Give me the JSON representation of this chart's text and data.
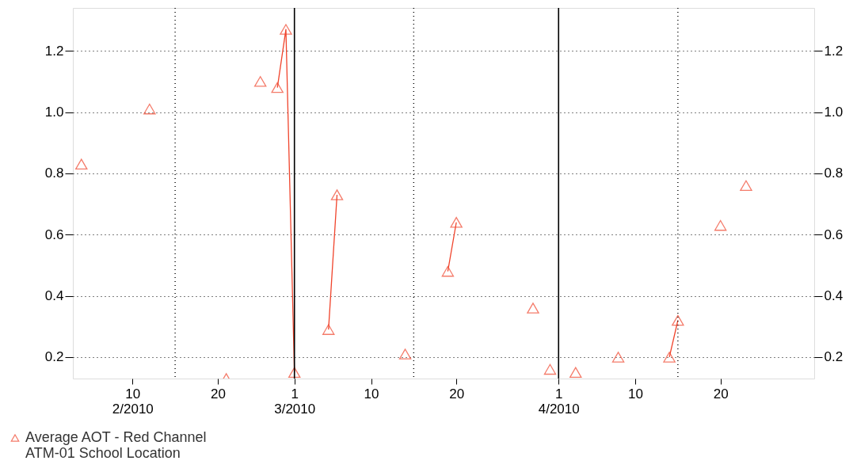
{
  "chart_data": {
    "type": "line",
    "x": [
      "2010-02-04",
      "2010-02-05",
      "2010-02-12",
      "2010-02-13",
      "2010-02-21",
      "2010-02-22",
      "2010-02-25",
      "2010-02-26",
      "2010-02-27",
      "2010-02-28",
      "2010-03-01",
      "2010-03-02",
      "2010-03-05",
      "2010-03-06",
      "2010-03-07",
      "2010-03-14",
      "2010-03-15",
      "2010-03-19",
      "2010-03-20",
      "2010-03-21",
      "2010-03-29",
      "2010-03-30",
      "2010-03-31",
      "2010-04-01",
      "2010-04-03",
      "2010-04-04",
      "2010-04-08",
      "2010-04-09",
      "2010-04-14",
      "2010-04-15",
      "2010-04-16",
      "2010-04-20",
      "2010-04-21",
      "2010-04-23"
    ],
    "series": [
      {
        "name": "Average AOT - Red Channel\nATM-01 School Location",
        "color": "#f0442c",
        "values": [
          0.83,
          null,
          1.01,
          null,
          0.13,
          null,
          1.1,
          null,
          1.08,
          1.27,
          0.15,
          null,
          0.29,
          0.73,
          null,
          0.21,
          null,
          0.48,
          0.64,
          null,
          0.36,
          null,
          0.16,
          null,
          0.15,
          null,
          0.2,
          null,
          0.2,
          0.32,
          null,
          0.63,
          null,
          0.76
        ]
      }
    ],
    "marker": "triangle",
    "line_style": "solid",
    "xlim": [
      "2010-02-03",
      "2010-05-01"
    ],
    "xticks": [
      {
        "value": "2010-02-10",
        "label": "10\n2/2010"
      },
      {
        "value": "2010-02-20",
        "label": "20"
      },
      {
        "value": "2010-03-01",
        "label": "1\n3/2010"
      },
      {
        "value": "2010-03-10",
        "label": "10"
      },
      {
        "value": "2010-03-20",
        "label": "20"
      },
      {
        "value": "2010-04-01",
        "label": "1\n4/2010"
      },
      {
        "value": "2010-04-10",
        "label": "10"
      },
      {
        "value": "2010-04-20",
        "label": "20"
      }
    ],
    "ylim": [
      0.13,
      1.34
    ],
    "yticks": [
      0.2,
      0.4,
      0.6,
      0.8,
      {
        "value": 1,
        "label": "1.0"
      },
      1.2
    ],
    "y2lim": [
      0.13,
      1.34
    ],
    "y2ticks": [
      0.2,
      0.4,
      0.6,
      0.8,
      {
        "value": 1,
        "label": "1.0"
      },
      1.2
    ],
    "ref_lines": [
      {
        "axis": "x",
        "value": "2010-03-01",
        "color": "#000000",
        "line_style": "solid"
      },
      {
        "axis": "x",
        "value": "2010-04-01",
        "color": "#000000",
        "line_style": "solid"
      },
      {
        "axis": "x",
        "value": "2010-02-15",
        "color": "#000000",
        "line_style": "dotted"
      },
      {
        "axis": "x",
        "value": "2010-03-15",
        "color": "#000000",
        "line_style": "dotted"
      },
      {
        "axis": "x",
        "value": "2010-04-15",
        "color": "#000000",
        "line_style": "dotted"
      }
    ],
    "grid": "y",
    "legend": "bottom left"
  }
}
